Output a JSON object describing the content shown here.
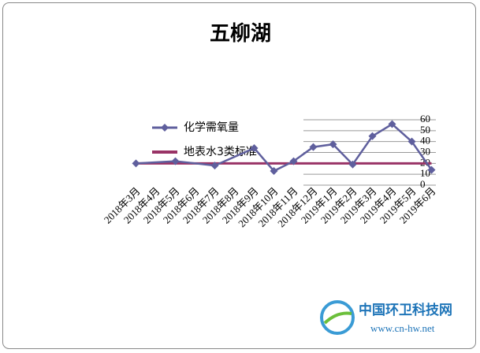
{
  "chart_data": {
    "type": "line",
    "title": "五柳湖",
    "categories": [
      "2018年3月",
      "2018年4月",
      "2018年5月",
      "2018年6月",
      "2018年7月",
      "2018年8月",
      "2018年9月",
      "2018年10月",
      "2018年11月",
      "2018年12月",
      "2019年1月",
      "2019年2月",
      "2019年3月",
      "2019年4月",
      "2019年5月",
      "2019年6月"
    ],
    "series": [
      {
        "name": "化学需氧量",
        "color": "#5f5f9d",
        "values": [
          20,
          null,
          22,
          null,
          18,
          null,
          34,
          13,
          22,
          35,
          37.5,
          19,
          45,
          56,
          40,
          14
        ]
      },
      {
        "name": "地表水3类标准",
        "color": "#993366",
        "values": [
          20,
          20,
          20,
          20,
          20,
          20,
          20,
          20,
          20,
          20,
          20,
          20,
          20,
          20,
          20,
          20
        ]
      }
    ],
    "span_gaps": true,
    "ylim": [
      0,
      60
    ],
    "yticks": [
      0,
      10,
      20,
      30,
      40,
      50,
      60
    ],
    "grid": true,
    "watermark": {
      "name": "中国环卫科技网",
      "url": "www.cn-hw.net"
    }
  }
}
